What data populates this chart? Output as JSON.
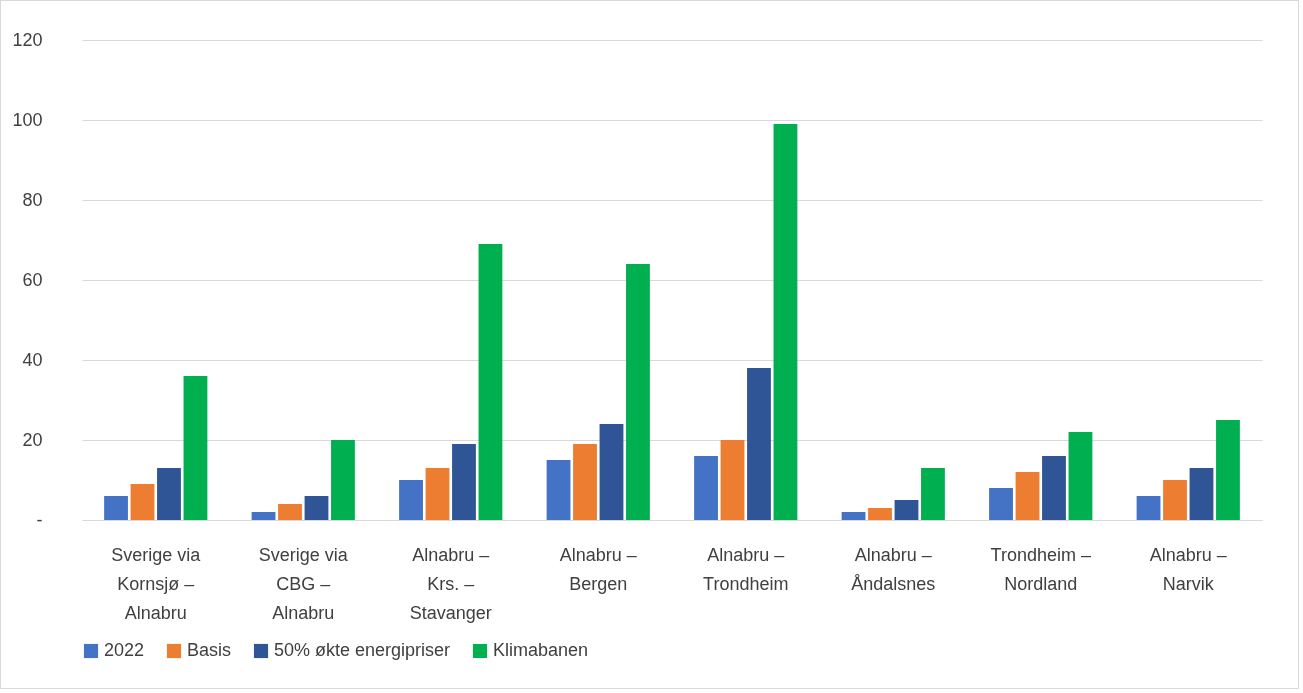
{
  "chart_data": {
    "type": "bar",
    "categories": [
      "Sverige via Kornsjø – Alnabru",
      "Sverige via CBG – Alnabru",
      "Alnabru – Krs. – Stavanger",
      "Alnabru – Bergen",
      "Alnabru – Trondheim",
      "Alnabru – Åndalsnes",
      "Trondheim – Nordland",
      "Alnabru – Narvik"
    ],
    "series": [
      {
        "name": "2022",
        "color": "#4472c4",
        "values": [
          6,
          2,
          10,
          15,
          16,
          2,
          8,
          6
        ]
      },
      {
        "name": "Basis",
        "color": "#ed7d31",
        "values": [
          9,
          4,
          13,
          19,
          20,
          3,
          12,
          10
        ]
      },
      {
        "name": "50% økte energipriser",
        "color": "#2f5597",
        "values": [
          13,
          6,
          19,
          24,
          38,
          5,
          16,
          13
        ]
      },
      {
        "name": "Klimabanen",
        "color": "#00b050",
        "values": [
          36,
          20,
          69,
          64,
          99,
          13,
          22,
          25
        ]
      }
    ],
    "ylim": [
      0,
      120
    ],
    "yticks": [
      {
        "value": 0,
        "label": "-"
      },
      20,
      40,
      60,
      80,
      100,
      120
    ],
    "grid": "y",
    "legend": "bottom"
  }
}
